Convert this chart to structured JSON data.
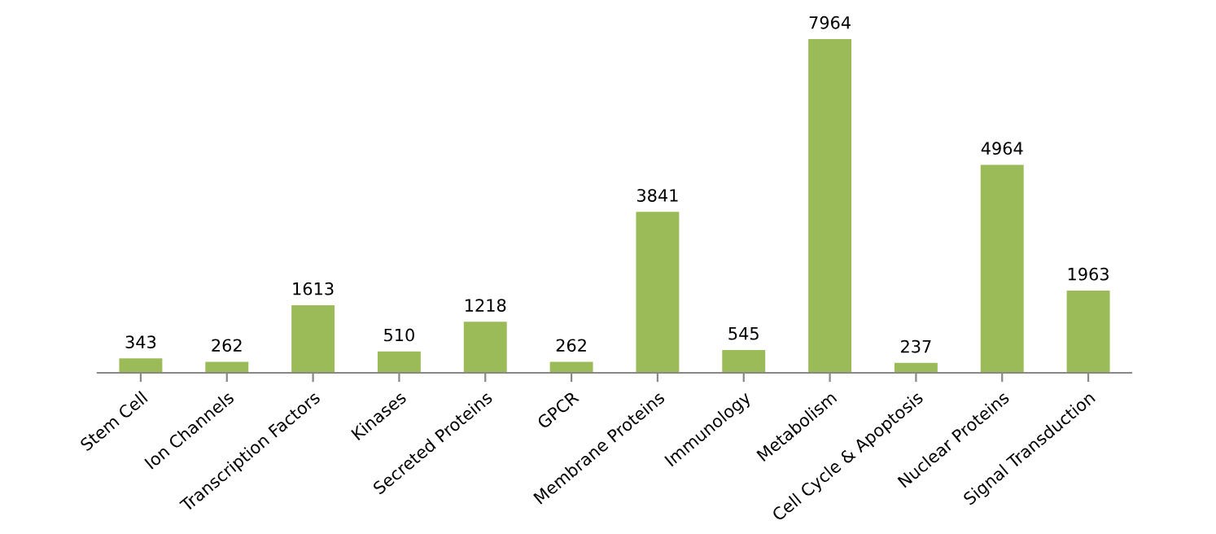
{
  "chart_data": {
    "type": "bar",
    "categories": [
      "Stem Cell",
      "Ion Channels",
      "Transcription Factors",
      "Kinases",
      "Secreted Proteins",
      "GPCR",
      "Membrane Proteins",
      "Immunology",
      "Metabolism",
      "Cell Cycle & Apoptosis",
      "Nuclear Proteins",
      "Signal Transduction"
    ],
    "values": [
      343,
      262,
      1613,
      510,
      1218,
      262,
      3841,
      545,
      7964,
      237,
      4964,
      1963
    ],
    "color": "#9bbb59",
    "data_labels": true
  }
}
